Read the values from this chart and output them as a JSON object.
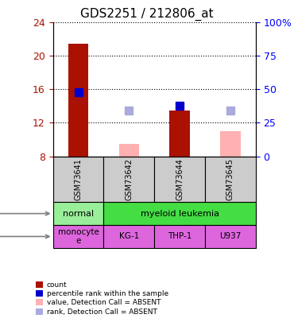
{
  "title": "GDS2251 / 212806_at",
  "samples": [
    "GSM73641",
    "GSM73642",
    "GSM73644",
    "GSM73645"
  ],
  "count_values": [
    21.5,
    null,
    13.5,
    null
  ],
  "count_absent_values": [
    null,
    9.5,
    null,
    11.0
  ],
  "percentile_values": [
    15.7,
    null,
    14.0,
    null
  ],
  "percentile_absent_values": [
    null,
    13.5,
    null,
    13.5
  ],
  "ylim_left": [
    8,
    24
  ],
  "ylim_right": [
    0,
    100
  ],
  "yticks_left": [
    8,
    12,
    16,
    20,
    24
  ],
  "yticks_right": [
    0,
    25,
    50,
    75,
    100
  ],
  "ytick_labels_right": [
    "0",
    "25",
    "50",
    "75",
    "100%"
  ],
  "cell_line": [
    "monocyte\ne",
    "KG-1",
    "THP-1",
    "U937"
  ],
  "color_count": "#aa1100",
  "color_count_absent": "#ffb0b0",
  "color_pct": "#0000cc",
  "color_pct_absent": "#aaaadd",
  "color_disease_normal": "#99ee99",
  "color_disease_leukemia": "#44dd44",
  "color_cell_line": "#dd66dd",
  "color_sample_bg": "#cccccc",
  "bar_width": 0.4,
  "marker_size": 7
}
